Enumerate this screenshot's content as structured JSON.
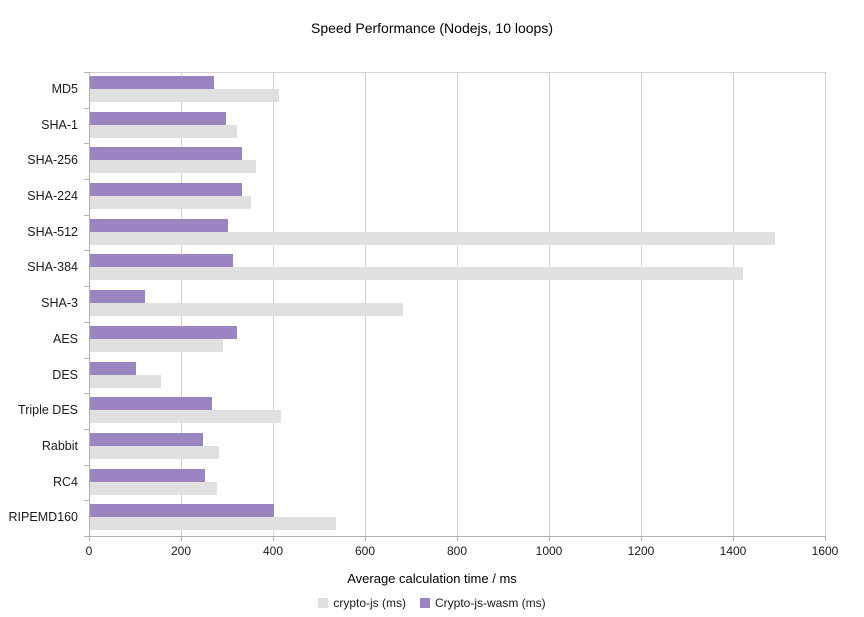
{
  "chart_data": {
    "type": "bar",
    "orientation": "horizontal",
    "title": "Speed Performance (Nodejs, 10 loops)",
    "xlabel": "Average calculation time / ms",
    "ylabel": "",
    "xlim": [
      0,
      1600
    ],
    "xticks": [
      0,
      200,
      400,
      600,
      800,
      1000,
      1200,
      1400,
      1600
    ],
    "grid": true,
    "legend_position": "bottom",
    "categories": [
      "MD5",
      "SHA-1",
      "SHA-256",
      "SHA-224",
      "SHA-512",
      "SHA-384",
      "SHA-3",
      "AES",
      "DES",
      "Triple DES",
      "Rabbit",
      "RC4",
      "RIPEMD160"
    ],
    "series": [
      {
        "name": "crypto-js (ms)",
        "color": "#e0e0e0",
        "values": [
          410,
          320,
          360,
          350,
          1490,
          1420,
          680,
          290,
          155,
          415,
          280,
          275,
          535
        ]
      },
      {
        "name": "Crypto-js-wasm (ms)",
        "color": "#9a85c1",
        "values": [
          270,
          295,
          330,
          330,
          300,
          310,
          120,
          320,
          100,
          265,
          245,
          250,
          400
        ]
      }
    ],
    "colors": {
      "gridline": "#d3d3d3",
      "axis": "#b3b3b3",
      "text": "#1a1a1a",
      "background": "#ffffff"
    }
  }
}
